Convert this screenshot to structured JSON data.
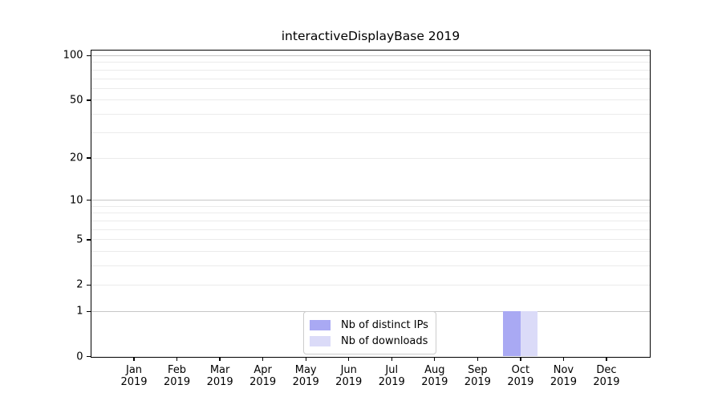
{
  "chart_data": {
    "type": "bar",
    "title": "interactiveDisplayBase 2019",
    "categories": [
      {
        "month": "Jan",
        "year": "2019"
      },
      {
        "month": "Feb",
        "year": "2019"
      },
      {
        "month": "Mar",
        "year": "2019"
      },
      {
        "month": "Apr",
        "year": "2019"
      },
      {
        "month": "May",
        "year": "2019"
      },
      {
        "month": "Jun",
        "year": "2019"
      },
      {
        "month": "Jul",
        "year": "2019"
      },
      {
        "month": "Aug",
        "year": "2019"
      },
      {
        "month": "Sep",
        "year": "2019"
      },
      {
        "month": "Oct",
        "year": "2019"
      },
      {
        "month": "Nov",
        "year": "2019"
      },
      {
        "month": "Dec",
        "year": "2019"
      }
    ],
    "series": [
      {
        "name": "Nb of distinct IPs",
        "color": "#a9a9f3",
        "values": [
          0,
          0,
          0,
          0,
          0,
          0,
          0,
          0,
          0,
          1,
          0,
          0
        ]
      },
      {
        "name": "Nb of downloads",
        "color": "#dbdbf8",
        "values": [
          0,
          0,
          0,
          0,
          0,
          0,
          0,
          0,
          0,
          1,
          0,
          0
        ]
      }
    ],
    "yscale": "log10(value+1)",
    "ylim": [
      0,
      109
    ],
    "yticks": [
      0,
      1,
      2,
      5,
      10,
      20,
      50,
      100
    ],
    "major_gridlines": [
      1,
      10,
      100
    ],
    "minor_gridlines": [
      2,
      3,
      4,
      5,
      6,
      7,
      8,
      9,
      20,
      30,
      40,
      50,
      60,
      70,
      80,
      90
    ],
    "grid": "horizontal",
    "legend_position": "bottom-center-inside",
    "colors": {
      "major_grid": "#c6c6c6",
      "minor_grid": "#ebebeb",
      "spine": "#000000",
      "text": "#000000"
    }
  }
}
